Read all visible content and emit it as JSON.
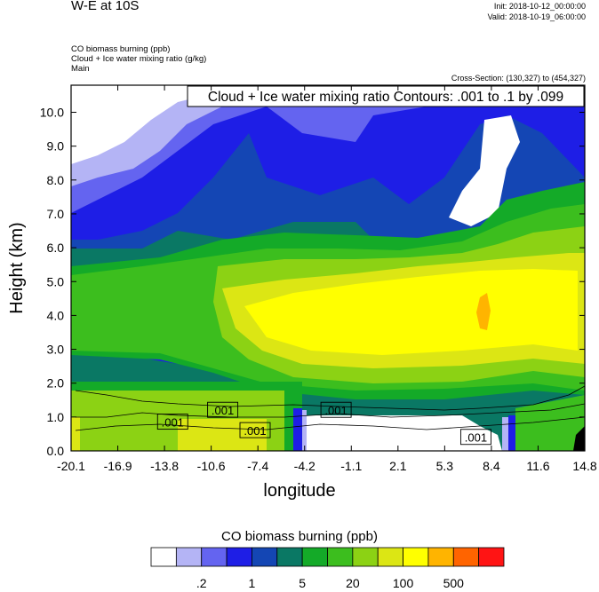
{
  "header": {
    "title": "W-E at 10S",
    "init": "Init: 2018-10-12_00:00:00",
    "valid": "Valid: 2018-10-19_06:00:00",
    "field_lines": [
      "CO biomass burning   (ppb)",
      "Cloud + Ice water mixing ratio   (g/kg)",
      "Main"
    ],
    "cross_section": "Cross-Section: (130,327) to (454,327)"
  },
  "chart_data": {
    "type": "heatmap",
    "title": "W-E at 10S",
    "xlabel": "longitude",
    "ylabel": "Height (km)",
    "xlim": [
      -20.1,
      14.8
    ],
    "ylim": [
      0.0,
      10.8
    ],
    "x_ticks": [
      "-20.1",
      "-16.9",
      "-13.8",
      "-10.6",
      "-7.4",
      "-4.2",
      "-1.1",
      "2.1",
      "5.3",
      "8.4",
      "11.6",
      "14.8"
    ],
    "y_ticks": [
      "0.0",
      "1.0",
      "2.0",
      "3.0",
      "4.0",
      "5.0",
      "6.0",
      "7.0",
      "8.0",
      "9.0",
      "10.0"
    ],
    "y_tick_values": [
      0,
      1,
      2,
      3,
      4,
      5,
      6,
      7,
      8,
      9,
      10
    ],
    "contour_annotation": "Cloud + Ice water mixing ratio Contours: .001 to .1 by .099",
    "contour_labels": [
      {
        "text": ".001",
        "x": -13.2,
        "y": 0.85
      },
      {
        "text": ".001",
        "x": -9.8,
        "y": 1.2
      },
      {
        "text": ".001",
        "x": -7.6,
        "y": 0.6
      },
      {
        "text": ".001",
        "x": -2.1,
        "y": 1.2
      },
      {
        "text": ".001",
        "x": 7.4,
        "y": 0.4
      }
    ],
    "colorbar": {
      "title": "CO biomass burning  (ppb)",
      "colors": [
        "#ffffff",
        "#b4b4f5",
        "#6464f0",
        "#1e1ee6",
        "#1446b4",
        "#0a7864",
        "#14aa28",
        "#3cbe1e",
        "#8cd214",
        "#dce614",
        "#ffff00",
        "#ffb400",
        "#ff6400",
        "#ff1414"
      ],
      "labels": [
        ".2",
        "1",
        "5",
        "20",
        "100",
        "500"
      ]
    }
  }
}
